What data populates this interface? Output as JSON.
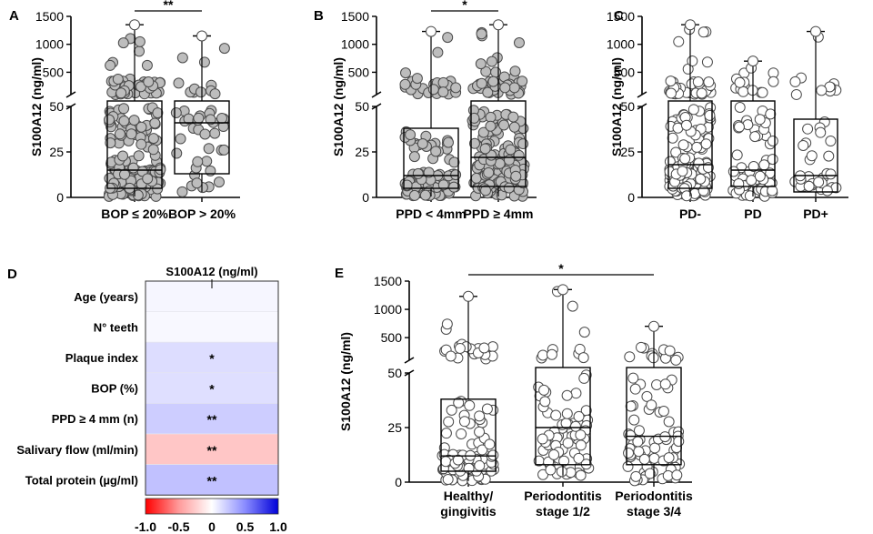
{
  "figure": {
    "colors": {
      "dot_fill": "#bdbdbd",
      "dot_stroke": "#4a4a4a",
      "dot_fill_light": "#ffffff",
      "line": "#000000",
      "neg": "#e41a1c",
      "pos": "#1f2fd0"
    }
  },
  "chart_data": [
    {
      "panel": "A",
      "type": "scatter",
      "subtype": "box-dot",
      "ylabel": "S100A12 (ng/ml)",
      "y_axis": {
        "broken": true,
        "lower_ticks": [
          "0",
          "25",
          "50"
        ],
        "upper_ticks": [
          "500",
          "1000",
          "1500"
        ],
        "lower_range": [
          0,
          50
        ],
        "upper_range": [
          100,
          1500
        ]
      },
      "categories": [
        "BOP ≤ 20%",
        "BOP > 20%"
      ],
      "boxes": [
        {
          "min": 0.5,
          "q1": 5,
          "median": 15,
          "q3": 65,
          "max": 1350
        },
        {
          "min": 3,
          "q1": 13,
          "median": 41,
          "q3": 70,
          "max": 1150
        }
      ],
      "points_n": [
        220,
        45
      ],
      "significance": [
        {
          "between": [
            0,
            1
          ],
          "label": "**"
        }
      ]
    },
    {
      "panel": "B",
      "type": "scatter",
      "subtype": "box-dot",
      "ylabel": "S100A12 (ng/ml)",
      "y_axis": {
        "broken": true,
        "lower_ticks": [
          "0",
          "25",
          "50"
        ],
        "upper_ticks": [
          "500",
          "1000",
          "1500"
        ],
        "lower_range": [
          0,
          50
        ],
        "upper_range": [
          100,
          1500
        ]
      },
      "categories": [
        "PPD < 4mm",
        "PPD ≥ 4mm"
      ],
      "boxes": [
        {
          "min": 0.5,
          "q1": 5,
          "median": 12,
          "q3": 38,
          "max": 1230
        },
        {
          "min": 0.5,
          "q1": 6,
          "median": 22,
          "q3": 68,
          "max": 1350
        }
      ],
      "points_n": [
        110,
        170
      ],
      "significance": [
        {
          "between": [
            0,
            1
          ],
          "label": "*"
        }
      ]
    },
    {
      "panel": "C",
      "type": "scatter",
      "subtype": "box-dot",
      "ylabel": "S100A12 (ng/ml)",
      "y_axis": {
        "broken": true,
        "lower_ticks": [
          "0",
          "25",
          "50"
        ],
        "upper_ticks": [
          "500",
          "1000",
          "1500"
        ],
        "lower_range": [
          0,
          50
        ],
        "upper_range": [
          100,
          1500
        ]
      },
      "categories": [
        "PD-",
        "PD",
        "PD+"
      ],
      "boxes": [
        {
          "min": 0.5,
          "q1": 5,
          "median": 18,
          "q3": 66,
          "max": 1350
        },
        {
          "min": 0.5,
          "q1": 6,
          "median": 15,
          "q3": 66,
          "max": 700
        },
        {
          "min": 0.5,
          "q1": 3,
          "median": 12,
          "q3": 43,
          "max": 1230
        }
      ],
      "points_n": [
        160,
        80,
        40
      ],
      "significance": []
    },
    {
      "panel": "E",
      "type": "scatter",
      "subtype": "box-dot",
      "ylabel": "S100A12 (ng/ml)",
      "y_axis": {
        "broken": true,
        "lower_ticks": [
          "0",
          "25",
          "50"
        ],
        "upper_ticks": [
          "500",
          "1000",
          "1500"
        ],
        "lower_range": [
          0,
          50
        ],
        "upper_range": [
          100,
          1500
        ]
      },
      "categories": [
        [
          "Healthy/",
          "gingivitis"
        ],
        [
          "Periodontitis",
          "stage 1/2"
        ],
        [
          "Periodontitis",
          "stage 3/4"
        ]
      ],
      "boxes": [
        {
          "min": 0.5,
          "q1": 5,
          "median": 12,
          "q3": 38,
          "max": 1230
        },
        {
          "min": 3,
          "q1": 8,
          "median": 25,
          "q3": 68,
          "max": 1350
        },
        {
          "min": 0.5,
          "q1": 8,
          "median": 21,
          "q3": 66,
          "max": 700
        }
      ],
      "points_n": [
        110,
        75,
        80
      ],
      "significance": [
        {
          "between": [
            0,
            2
          ],
          "label": "*"
        }
      ]
    },
    {
      "panel": "D",
      "type": "heatmap",
      "title": "S100A12 (ng/ml)",
      "rows": [
        "Age (years)",
        "N° teeth",
        "Plaque index",
        "BOP (%)",
        "PPD ≥ 4 mm (n)",
        "Salivary flow (ml/min)",
        "Total protein (µg/ml)"
      ],
      "values": [
        0.04,
        0.03,
        0.15,
        0.14,
        0.22,
        -0.25,
        0.27
      ],
      "significance": [
        "",
        "",
        "*",
        "*",
        "**",
        "**",
        "**"
      ],
      "colorbar": {
        "range": [
          -1.0,
          1.0
        ],
        "ticks": [
          "-1.0",
          "-0.5",
          "0",
          "0.5",
          "1.0"
        ]
      }
    }
  ]
}
